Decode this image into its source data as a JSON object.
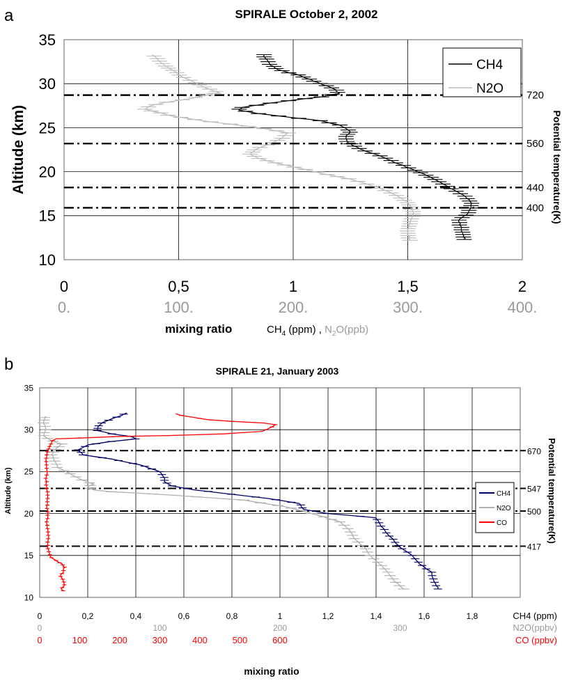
{
  "chart_data": [
    {
      "panel_label": "a",
      "type": "line",
      "title": "SPIRALE October 2, 2002",
      "ylabel": "Altitude (km)",
      "xlabel": "mixing ratio",
      "xlabel_units_prefix": "CH",
      "xlabel_units_sub": "4",
      "xlabel_units_mid": " (ppm) , ",
      "xlabel_units_n2o": "N",
      "xlabel_units_n2o_sub": "2",
      "xlabel_units_n2o_tail": "O(ppb)",
      "right_label": "Potential temperature(K)",
      "ylim": [
        10,
        35
      ],
      "xlim": [
        0,
        2
      ],
      "grid": true,
      "legend_position": "top-right",
      "y_ticks": [
        "10",
        "15",
        "20",
        "25",
        "30",
        "35"
      ],
      "x_ticks_primary": [
        "0",
        "0,5",
        "1",
        "1,5",
        "2"
      ],
      "x_ticks_secondary": [
        "0.",
        "100.",
        "200.",
        "300.",
        "400."
      ],
      "colors": {
        "CH4": "#000000",
        "N2O": "#bbbbbb",
        "secondary_axis": "#999999"
      },
      "potential_temperature_levels": [
        {
          "altitude": 28.7,
          "label": "720"
        },
        {
          "altitude": 23.2,
          "label": "560"
        },
        {
          "altitude": 18.2,
          "label": "440"
        },
        {
          "altitude": 15.9,
          "label": "400"
        }
      ],
      "series": [
        {
          "name": "CH4",
          "units": "ppm",
          "points": [
            [
              1.75,
              12.3
            ],
            [
              1.74,
              13.0
            ],
            [
              1.73,
              13.8
            ],
            [
              1.72,
              14.5
            ],
            [
              1.76,
              15.2
            ],
            [
              1.78,
              16.0
            ],
            [
              1.77,
              16.8
            ],
            [
              1.73,
              17.5
            ],
            [
              1.68,
              18.2
            ],
            [
              1.63,
              19.0
            ],
            [
              1.58,
              19.6
            ],
            [
              1.52,
              20.3
            ],
            [
              1.45,
              21.0
            ],
            [
              1.38,
              21.8
            ],
            [
              1.3,
              22.5
            ],
            [
              1.24,
              23.3
            ],
            [
              1.23,
              24.0
            ],
            [
              1.25,
              24.6
            ],
            [
              1.2,
              25.3
            ],
            [
              1.12,
              25.8
            ],
            [
              0.98,
              26.2
            ],
            [
              0.85,
              26.6
            ],
            [
              0.76,
              27.0
            ],
            [
              0.78,
              27.3
            ],
            [
              0.9,
              27.8
            ],
            [
              1.02,
              28.2
            ],
            [
              1.12,
              28.5
            ],
            [
              1.2,
              28.9
            ],
            [
              1.18,
              29.4
            ],
            [
              1.13,
              29.9
            ],
            [
              1.08,
              30.4
            ],
            [
              1.02,
              31.0
            ],
            [
              0.93,
              31.6
            ],
            [
              0.9,
              32.2
            ],
            [
              0.88,
              32.8
            ],
            [
              0.87,
              33.3
            ]
          ]
        },
        {
          "name": "N2O",
          "units": "ppb",
          "points": [
            [
              302,
              12.2
            ],
            [
              300,
              13.0
            ],
            [
              301,
              13.8
            ],
            [
              303,
              14.5
            ],
            [
              305,
              15.2
            ],
            [
              303,
              16.0
            ],
            [
              299,
              16.6
            ],
            [
              290,
              17.3
            ],
            [
              278,
              18.0
            ],
            [
              265,
              18.6
            ],
            [
              248,
              19.2
            ],
            [
              225,
              19.8
            ],
            [
              205,
              20.4
            ],
            [
              185,
              21.0
            ],
            [
              170,
              21.5
            ],
            [
              162,
              22.0
            ],
            [
              168,
              22.6
            ],
            [
              180,
              23.2
            ],
            [
              190,
              23.8
            ],
            [
              195,
              24.4
            ],
            [
              175,
              24.9
            ],
            [
              145,
              25.4
            ],
            [
              120,
              25.8
            ],
            [
              95,
              26.3
            ],
            [
              80,
              26.8
            ],
            [
              70,
              27.1
            ],
            [
              75,
              27.5
            ],
            [
              90,
              27.9
            ],
            [
              110,
              28.3
            ],
            [
              125,
              28.7
            ],
            [
              135,
              29.0
            ],
            [
              124,
              29.5
            ],
            [
              115,
              30.1
            ],
            [
              104,
              30.7
            ],
            [
              96,
              31.4
            ],
            [
              89,
              32.0
            ],
            [
              82,
              32.7
            ],
            [
              77,
              33.3
            ]
          ]
        }
      ]
    },
    {
      "panel_label": "b",
      "type": "line",
      "title": "SPIRALE 21, January 2003",
      "ylabel": "Altitude (km)",
      "xlabel": "mixing ratio",
      "right_label": "Potential temperature(K)",
      "ylim": [
        10,
        35
      ],
      "xlim": [
        0,
        2
      ],
      "grid": true,
      "legend_position": "right",
      "y_ticks": [
        "10",
        "15",
        "20",
        "25",
        "30",
        "35"
      ],
      "x_ticks_ch4": [
        "0",
        "0,2",
        "0,4",
        "0,6",
        "0,8",
        "1",
        "1,2",
        "1,4",
        "1,6",
        "1,8"
      ],
      "x_ticks_n2o": [
        "0",
        "100",
        "200",
        "300"
      ],
      "x_ticks_co": [
        "0",
        "100",
        "200",
        "300",
        "400",
        "500",
        "600"
      ],
      "axis_label_ch4": "CH4 (ppm)",
      "axis_label_n2o": "N2O(ppbv)",
      "axis_label_co": "CO (ppbv)",
      "colors": {
        "CH4": "#000066",
        "N2O": "#b0b0b0",
        "CO": "#ff0000"
      },
      "potential_temperature_levels": [
        {
          "altitude": 27.5,
          "label": "670"
        },
        {
          "altitude": 23.0,
          "label": "547"
        },
        {
          "altitude": 20.3,
          "label": "500"
        },
        {
          "altitude": 16.1,
          "label": "417"
        }
      ],
      "series": [
        {
          "name": "CH4",
          "units": "ppm",
          "points": [
            [
              1.66,
              11.0
            ],
            [
              1.64,
              12.0
            ],
            [
              1.63,
              13.0
            ],
            [
              1.58,
              14.0
            ],
            [
              1.55,
              15.0
            ],
            [
              1.5,
              16.0
            ],
            [
              1.45,
              17.5
            ],
            [
              1.42,
              18.5
            ],
            [
              1.4,
              19.5
            ],
            [
              1.2,
              20.0
            ],
            [
              1.1,
              20.5
            ],
            [
              1.08,
              21.2
            ],
            [
              0.95,
              21.8
            ],
            [
              0.8,
              22.3
            ],
            [
              0.65,
              22.8
            ],
            [
              0.55,
              23.3
            ],
            [
              0.52,
              23.8
            ],
            [
              0.52,
              24.3
            ],
            [
              0.5,
              25.0
            ],
            [
              0.42,
              25.8
            ],
            [
              0.3,
              26.5
            ],
            [
              0.18,
              27.0
            ],
            [
              0.16,
              27.6
            ],
            [
              0.2,
              28.2
            ],
            [
              0.3,
              28.6
            ],
            [
              0.4,
              28.9
            ],
            [
              0.38,
              29.2
            ],
            [
              0.3,
              29.5
            ],
            [
              0.24,
              29.9
            ],
            [
              0.24,
              30.3
            ],
            [
              0.26,
              30.8
            ],
            [
              0.3,
              31.3
            ],
            [
              0.34,
              31.7
            ],
            [
              0.36,
              32.0
            ]
          ]
        },
        {
          "name": "N2O",
          "units": "ppbv",
          "points": [
            [
              303,
              11.0
            ],
            [
              295,
              12.0
            ],
            [
              290,
              13.0
            ],
            [
              283,
              14.0
            ],
            [
              275,
              15.0
            ],
            [
              270,
              16.0
            ],
            [
              262,
              17.0
            ],
            [
              258,
              18.0
            ],
            [
              250,
              19.0
            ],
            [
              236,
              19.6
            ],
            [
              222,
              20.2
            ],
            [
              205,
              20.8
            ],
            [
              170,
              21.6
            ],
            [
              110,
              22.2
            ],
            [
              60,
              22.6
            ],
            [
              45,
              22.8
            ],
            [
              40,
              23.2
            ],
            [
              45,
              23.5
            ],
            [
              35,
              24.0
            ],
            [
              15,
              25.5
            ],
            [
              10,
              27.0
            ],
            [
              12,
              27.5
            ],
            [
              18,
              28.3
            ],
            [
              8,
              28.8
            ],
            [
              3,
              29.3
            ],
            [
              5,
              30.0
            ],
            [
              3,
              31.0
            ],
            [
              5,
              31.6
            ]
          ]
        },
        {
          "name": "CO",
          "units": "ppbv",
          "points": [
            [
              60,
              10.8
            ],
            [
              55,
              11.0
            ],
            [
              62,
              11.5
            ],
            [
              58,
              12.0
            ],
            [
              52,
              12.5
            ],
            [
              58,
              13.0
            ],
            [
              62,
              13.6
            ],
            [
              55,
              14.0
            ],
            [
              40,
              14.4
            ],
            [
              25,
              14.9
            ],
            [
              20,
              16.0
            ],
            [
              22,
              17.0
            ],
            [
              20,
              18.0
            ],
            [
              18,
              19.0
            ],
            [
              20,
              20.0
            ],
            [
              18,
              21.0
            ],
            [
              20,
              22.0
            ],
            [
              18,
              23.0
            ],
            [
              16,
              24.0
            ],
            [
              18,
              25.0
            ],
            [
              16,
              26.0
            ],
            [
              18,
              27.0
            ],
            [
              22,
              27.7
            ],
            [
              28,
              28.3
            ],
            [
              32,
              28.7
            ],
            [
              40,
              28.9
            ],
            [
              100,
              29.0
            ],
            [
              200,
              29.2
            ],
            [
              320,
              29.3
            ],
            [
              460,
              29.5
            ],
            [
              555,
              29.8
            ],
            [
              575,
              30.2
            ],
            [
              590,
              30.6
            ],
            [
              560,
              30.8
            ],
            [
              480,
              31.0
            ],
            [
              420,
              31.2
            ],
            [
              380,
              31.5
            ],
            [
              355,
              31.7
            ],
            [
              340,
              31.9
            ]
          ]
        }
      ]
    }
  ]
}
